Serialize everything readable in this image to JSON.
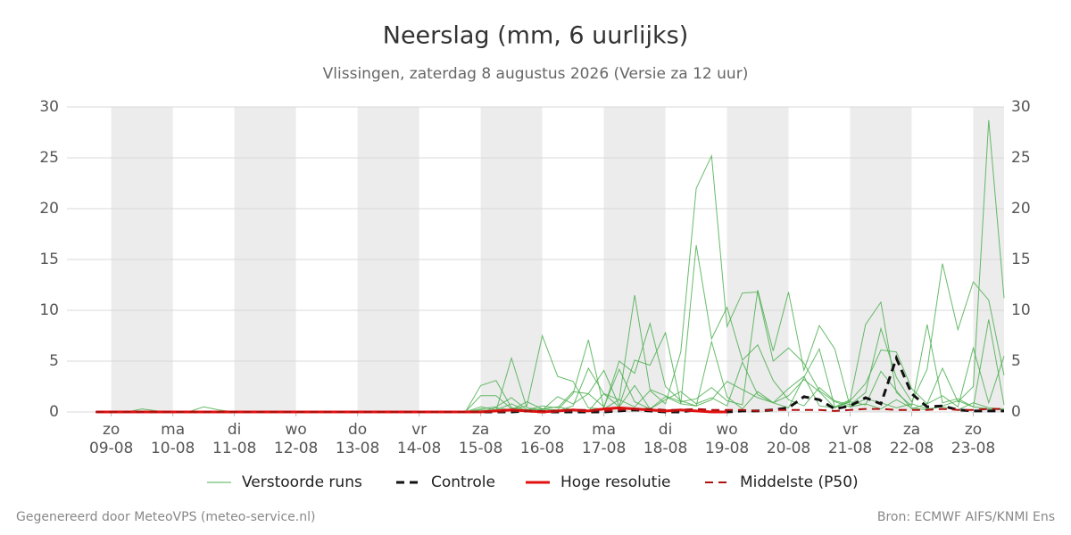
{
  "chart_data": {
    "type": "line",
    "title": "Neerslag (mm, 6 uurlijks)",
    "subtitle": "Vlissingen, zaterdag  8 augustus 2026 (Versie za 12 uur)",
    "footer_left": "Gegenereerd door MeteoVPS (meteo-service.nl)",
    "footer_right": "Bron: ECMWF AIFS/KNMI Ens",
    "xlim": [
      -0.72,
      14.5
    ],
    "ylim": [
      0,
      30
    ],
    "yticks": [
      0,
      5,
      10,
      15,
      20,
      25,
      30
    ],
    "xticks": [
      {
        "value": 0,
        "label": "zo\n09-08"
      },
      {
        "value": 1,
        "label": "ma\n10-08"
      },
      {
        "value": 2,
        "label": "di\n11-08"
      },
      {
        "value": 3,
        "label": "wo\n12-08"
      },
      {
        "value": 4,
        "label": "do\n13-08"
      },
      {
        "value": 5,
        "label": "vr\n14-08"
      },
      {
        "value": 6,
        "label": "za\n15-08"
      },
      {
        "value": 7,
        "label": "zo\n16-08"
      },
      {
        "value": 8,
        "label": "ma\n17-08"
      },
      {
        "value": 9,
        "label": "di\n18-08"
      },
      {
        "value": 10,
        "label": "wo\n19-08"
      },
      {
        "value": 11,
        "label": "do\n20-08"
      },
      {
        "value": 12,
        "label": "vr\n21-08"
      },
      {
        "value": 13,
        "label": "za\n22-08"
      },
      {
        "value": 14,
        "label": "zo\n23-08"
      }
    ],
    "grid": true,
    "x": [
      -0.25,
      0,
      0.25,
      0.5,
      0.75,
      1,
      1.25,
      1.5,
      1.75,
      2,
      2.25,
      2.5,
      2.75,
      3,
      3.25,
      3.5,
      3.75,
      4,
      4.25,
      4.5,
      4.75,
      5,
      5.25,
      5.5,
      5.75,
      6,
      6.25,
      6.5,
      6.75,
      7,
      7.25,
      7.5,
      7.75,
      8,
      8.25,
      8.5,
      8.75,
      9,
      9.25,
      9.5,
      9.75,
      10,
      10.25,
      10.5,
      10.75,
      11,
      11.25,
      11.5,
      11.75,
      12,
      12.25,
      12.5,
      12.75,
      13,
      13.25,
      13.5,
      13.75,
      14,
      14.25,
      14.5
    ],
    "ensemble": {
      "name": "Verstoorde runs",
      "color": "#4caf50",
      "runs": [
        [
          0,
          0,
          0,
          0.3,
          0.1,
          0,
          0,
          0.5,
          0.2,
          0,
          0,
          0,
          0,
          0,
          0,
          0,
          0,
          0,
          0,
          0,
          0,
          0,
          0,
          0,
          0,
          2.6,
          3.1,
          0.4,
          0.2,
          0.3,
          0.5,
          0.2,
          0.1,
          1.8,
          1.2,
          0.5,
          2.1,
          0.8,
          5.9,
          22.0,
          25.2,
          8.4,
          11.7,
          11.8,
          5.0,
          6.3,
          4.8,
          2.1,
          1.0,
          0.5,
          0.8,
          0.3,
          1.2,
          0.4,
          0.2,
          0.6,
          1.1,
          0.5,
          0.3,
          0.2
        ],
        [
          0,
          0,
          0.1,
          0,
          0,
          0,
          0,
          0,
          0,
          0,
          0,
          0,
          0,
          0,
          0,
          0,
          0,
          0,
          0,
          0,
          0,
          0,
          0,
          0,
          0,
          0.3,
          0.5,
          1.4,
          0.2,
          0.6,
          0.4,
          2.0,
          1.8,
          0.5,
          4.2,
          1.0,
          0.3,
          1.5,
          0.8,
          0.6,
          1.2,
          3.0,
          2.2,
          1.4,
          0.9,
          1.6,
          3.2,
          2.0,
          0.4,
          1.1,
          2.8,
          6.1,
          5.9,
          2.3,
          0.8,
          4.3,
          1.0,
          2.5,
          28.7,
          11.2
        ],
        [
          0,
          0,
          0,
          0,
          0,
          0,
          0,
          0,
          0,
          0,
          0,
          0,
          0,
          0,
          0,
          0,
          0,
          0,
          0,
          0,
          0,
          0,
          0,
          0,
          0,
          0.2,
          0.1,
          5.3,
          0.4,
          0.2,
          1.5,
          0.8,
          1.8,
          4.1,
          0.6,
          5.1,
          4.6,
          7.8,
          0.8,
          16.4,
          7.2,
          10.3,
          5.1,
          6.6,
          3.1,
          1.2,
          0.6,
          2.4,
          1.1,
          0.7,
          1.9,
          8.2,
          3.4,
          1.0,
          4.2,
          14.6,
          8.1,
          12.8,
          11.0,
          3.6
        ],
        [
          0,
          0,
          0,
          0,
          0,
          0,
          0,
          0,
          0,
          0,
          0,
          0,
          0,
          0,
          0,
          0,
          0,
          0,
          0,
          0,
          0,
          0,
          0,
          0,
          0,
          1.6,
          1.6,
          0.3,
          0.6,
          7.5,
          3.5,
          3.0,
          0.4,
          0.3,
          1.2,
          11.5,
          2.2,
          1.6,
          1.0,
          1.3,
          2.4,
          1.1,
          0.7,
          12.0,
          6.0,
          11.8,
          4.1,
          8.5,
          6.2,
          0.5,
          1.3,
          0.9,
          0.4,
          0.8,
          0.3,
          0.5,
          0.2,
          0.9,
          0.4,
          0.3
        ],
        [
          0,
          0,
          0,
          0,
          0,
          0,
          0,
          0,
          0,
          0,
          0,
          0,
          0,
          0,
          0,
          0,
          0,
          0,
          0,
          0,
          0,
          0,
          0,
          0,
          0,
          0,
          0.4,
          0.2,
          1.0,
          0.3,
          0.2,
          1.8,
          7.1,
          0.4,
          5.0,
          3.8,
          8.7,
          2.5,
          1.1,
          0.6,
          6.9,
          1.5,
          0.3,
          2.0,
          0.9,
          0.4,
          3.4,
          6.2,
          0.5,
          1.2,
          8.6,
          10.8,
          1.9,
          0.6,
          8.6,
          0.9,
          1.3,
          0.5,
          9.1,
          0.7
        ],
        [
          0,
          0,
          0,
          0,
          0,
          0,
          0,
          0,
          0,
          0,
          0,
          0,
          0,
          0,
          0,
          0,
          0,
          0,
          0,
          0,
          0,
          0,
          0,
          0,
          0,
          0.5,
          0.2,
          0.8,
          0.1,
          0.3,
          0.1,
          0.6,
          4.3,
          1.8,
          0.5,
          2.6,
          0.3,
          1.2,
          2.0,
          0.8,
          1.4,
          0.6,
          4.9,
          1.7,
          0.9,
          2.3,
          3.5,
          0.6,
          0.4,
          1.0,
          0.7,
          4.0,
          2.1,
          0.3,
          0.8,
          1.6,
          0.5,
          6.3,
          0.9,
          5.5
        ]
      ]
    },
    "series": [
      {
        "name": "Controle",
        "color": "#111111",
        "dashed": true,
        "width": 3,
        "values": [
          0,
          0,
          0,
          0,
          0,
          0,
          0,
          0,
          0,
          0,
          0,
          0,
          0,
          0,
          0,
          0,
          0,
          0,
          0,
          0,
          0,
          0,
          0,
          0,
          0,
          0,
          0,
          0,
          0.1,
          0,
          0,
          0,
          0,
          0,
          0.1,
          0.2,
          0.1,
          0,
          0,
          0.2,
          0.1,
          0,
          0.1,
          0.1,
          0.2,
          0.4,
          1.5,
          1.2,
          0.3,
          0.6,
          1.4,
          0.8,
          5.3,
          1.8,
          0.5,
          0.6,
          0.2,
          0.1,
          0.1,
          0.1
        ]
      },
      {
        "name": "Hoge resolutie",
        "color": "#e01010",
        "dashed": false,
        "width": 3,
        "values": [
          0,
          0,
          0,
          0,
          0,
          0,
          0,
          0,
          0,
          0,
          0,
          0,
          0,
          0,
          0,
          0,
          0,
          0,
          0,
          0,
          0,
          0,
          0,
          0,
          0,
          0,
          0.1,
          0.2,
          0.1,
          0,
          0.1,
          0.2,
          0.1,
          0.3,
          0.4,
          0.3,
          0.2,
          0.1,
          0.2,
          0.1,
          0,
          0,
          null,
          null,
          null,
          null,
          null,
          null,
          null,
          null,
          null,
          null,
          null,
          null,
          null,
          null,
          null,
          null,
          null,
          null
        ]
      },
      {
        "name": "Middelste (P50)",
        "color": "#b01010",
        "dashed": true,
        "width": 2,
        "values": [
          0,
          0,
          0,
          0,
          0,
          0,
          0,
          0,
          0,
          0,
          0,
          0,
          0,
          0,
          0,
          0,
          0,
          0,
          0,
          0,
          0,
          0,
          0,
          0,
          0,
          0,
          0,
          0.1,
          0.1,
          0.1,
          0.1,
          0.2,
          0.2,
          0.1,
          0.2,
          0.3,
          0.3,
          0.2,
          0.2,
          0.3,
          0.2,
          0.2,
          0.2,
          0.1,
          0.2,
          0.2,
          0.2,
          0.2,
          0.1,
          0.2,
          0.3,
          0.3,
          0.2,
          0.2,
          0.2,
          0.3,
          0.2,
          0.2,
          0.3,
          0.3
        ]
      }
    ]
  }
}
